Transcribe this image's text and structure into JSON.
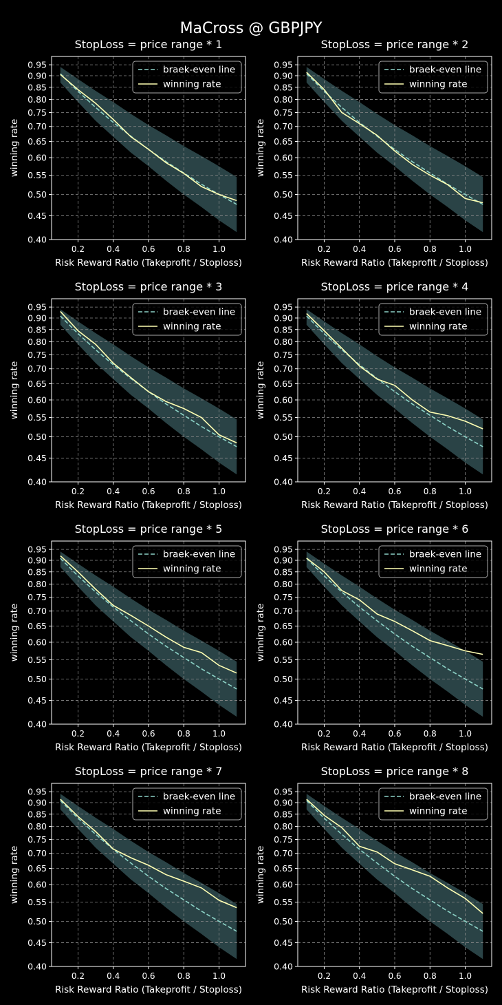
{
  "figure_title": "MaCross @ GBPJPY",
  "colors": {
    "background": "#000000",
    "axes": "#ffffff",
    "grid": "#8c8c8c",
    "band": "#2f4a4e",
    "breakeven": "#8dd3c7",
    "winning": "#ffffb3",
    "legend_bg": "#000000",
    "legend_edge": "#aaaaaa"
  },
  "chart_data": [
    {
      "type": "line",
      "title": "StopLoss = price range * 1",
      "xlabel": "Risk Reward Ratio (Takeprofit / Stoploss)",
      "ylabel": "winning rate",
      "xlim": [
        0.05,
        1.15
      ],
      "ylim": [
        0.4,
        0.99
      ],
      "yscale": "log",
      "xticks": [
        "0.2",
        "0.4",
        "0.6",
        "0.8",
        "1.0"
      ],
      "yticks": [
        "0.95",
        "0.90",
        "0.85",
        "0.80",
        "0.75",
        "0.70",
        "0.65",
        "0.60",
        "0.55",
        "0.50",
        "0.45",
        "0.40"
      ],
      "grid": true,
      "legend_position": "top-right",
      "x": [
        0.1,
        0.2,
        0.3,
        0.4,
        0.5,
        0.6,
        0.7,
        0.8,
        0.9,
        1.0,
        1.1
      ],
      "band": {
        "upper": [
          0.94,
          0.885,
          0.835,
          0.79,
          0.745,
          0.705,
          0.67,
          0.635,
          0.605,
          0.575,
          0.545
        ],
        "lower": [
          0.87,
          0.79,
          0.72,
          0.665,
          0.615,
          0.575,
          0.535,
          0.5,
          0.47,
          0.44,
          0.415
        ]
      },
      "series": [
        {
          "name": "braek-even line",
          "style": "dashed",
          "values": [
            0.909,
            0.833,
            0.769,
            0.714,
            0.667,
            0.625,
            0.588,
            0.556,
            0.526,
            0.5,
            0.476
          ]
        },
        {
          "name": "winning rate",
          "style": "solid",
          "values": [
            0.905,
            0.84,
            0.785,
            0.725,
            0.665,
            0.625,
            0.585,
            0.555,
            0.52,
            0.5,
            0.485
          ]
        }
      ]
    },
    {
      "type": "line",
      "title": "StopLoss = price range * 2",
      "xlabel": "Risk Reward Ratio (Takeprofit / Stoploss)",
      "ylabel": "winning rate",
      "xlim": [
        0.05,
        1.15
      ],
      "ylim": [
        0.4,
        0.99
      ],
      "yscale": "log",
      "xticks": [
        "0.2",
        "0.4",
        "0.6",
        "0.8",
        "1.0"
      ],
      "yticks": [
        "0.95",
        "0.90",
        "0.85",
        "0.80",
        "0.75",
        "0.70",
        "0.65",
        "0.60",
        "0.55",
        "0.50",
        "0.45",
        "0.40"
      ],
      "grid": true,
      "legend_position": "top-right",
      "x": [
        0.1,
        0.2,
        0.3,
        0.4,
        0.5,
        0.6,
        0.7,
        0.8,
        0.9,
        1.0,
        1.1
      ],
      "band": {
        "upper": [
          0.94,
          0.885,
          0.835,
          0.79,
          0.745,
          0.705,
          0.67,
          0.635,
          0.605,
          0.575,
          0.545
        ],
        "lower": [
          0.87,
          0.79,
          0.72,
          0.665,
          0.615,
          0.575,
          0.535,
          0.5,
          0.47,
          0.44,
          0.415
        ]
      },
      "series": [
        {
          "name": "braek-even line",
          "style": "dashed",
          "values": [
            0.909,
            0.833,
            0.769,
            0.714,
            0.667,
            0.625,
            0.588,
            0.556,
            0.526,
            0.5,
            0.476
          ]
        },
        {
          "name": "winning rate",
          "style": "solid",
          "values": [
            0.915,
            0.84,
            0.75,
            0.71,
            0.67,
            0.62,
            0.58,
            0.55,
            0.525,
            0.49,
            0.48
          ]
        }
      ]
    },
    {
      "type": "line",
      "title": "StopLoss = price range * 3",
      "xlabel": "Risk Reward Ratio (Takeprofit / Stoploss)",
      "ylabel": "winning rate",
      "xlim": [
        0.05,
        1.15
      ],
      "ylim": [
        0.4,
        0.99
      ],
      "yscale": "log",
      "xticks": [
        "0.2",
        "0.4",
        "0.6",
        "0.8",
        "1.0"
      ],
      "yticks": [
        "0.95",
        "0.90",
        "0.85",
        "0.80",
        "0.75",
        "0.70",
        "0.65",
        "0.60",
        "0.55",
        "0.50",
        "0.45",
        "0.40"
      ],
      "grid": true,
      "legend_position": "top-right",
      "x": [
        0.1,
        0.2,
        0.3,
        0.4,
        0.5,
        0.6,
        0.7,
        0.8,
        0.9,
        1.0,
        1.1
      ],
      "band": {
        "upper": [
          0.94,
          0.885,
          0.835,
          0.79,
          0.745,
          0.705,
          0.67,
          0.635,
          0.605,
          0.575,
          0.545
        ],
        "lower": [
          0.87,
          0.79,
          0.72,
          0.665,
          0.615,
          0.575,
          0.535,
          0.5,
          0.47,
          0.44,
          0.415
        ]
      },
      "series": [
        {
          "name": "braek-even line",
          "style": "dashed",
          "values": [
            0.909,
            0.833,
            0.769,
            0.714,
            0.667,
            0.625,
            0.588,
            0.556,
            0.526,
            0.5,
            0.476
          ]
        },
        {
          "name": "winning rate",
          "style": "solid",
          "values": [
            0.93,
            0.845,
            0.79,
            0.72,
            0.67,
            0.625,
            0.595,
            0.575,
            0.55,
            0.505,
            0.485
          ]
        }
      ]
    },
    {
      "type": "line",
      "title": "StopLoss = price range * 4",
      "xlabel": "Risk Reward Ratio (Takeprofit / Stoploss)",
      "ylabel": "winning rate",
      "xlim": [
        0.05,
        1.15
      ],
      "ylim": [
        0.4,
        0.99
      ],
      "yscale": "log",
      "xticks": [
        "0.2",
        "0.4",
        "0.6",
        "0.8",
        "1.0"
      ],
      "yticks": [
        "0.95",
        "0.90",
        "0.85",
        "0.80",
        "0.75",
        "0.70",
        "0.65",
        "0.60",
        "0.55",
        "0.50",
        "0.45",
        "0.40"
      ],
      "grid": true,
      "legend_position": "top-right",
      "x": [
        0.1,
        0.2,
        0.3,
        0.4,
        0.5,
        0.6,
        0.7,
        0.8,
        0.9,
        1.0,
        1.1
      ],
      "band": {
        "upper": [
          0.94,
          0.885,
          0.835,
          0.79,
          0.745,
          0.705,
          0.67,
          0.635,
          0.605,
          0.575,
          0.545
        ],
        "lower": [
          0.87,
          0.79,
          0.72,
          0.665,
          0.615,
          0.575,
          0.535,
          0.5,
          0.47,
          0.44,
          0.415
        ]
      },
      "series": [
        {
          "name": "braek-even line",
          "style": "dashed",
          "values": [
            0.909,
            0.833,
            0.769,
            0.714,
            0.667,
            0.625,
            0.588,
            0.556,
            0.526,
            0.5,
            0.476
          ]
        },
        {
          "name": "winning rate",
          "style": "solid",
          "values": [
            0.92,
            0.845,
            0.775,
            0.71,
            0.665,
            0.645,
            0.6,
            0.565,
            0.555,
            0.54,
            0.52
          ]
        }
      ]
    },
    {
      "type": "line",
      "title": "StopLoss = price range * 5",
      "xlabel": "Risk Reward Ratio (Takeprofit / Stoploss)",
      "ylabel": "winning rate",
      "xlim": [
        0.05,
        1.15
      ],
      "ylim": [
        0.4,
        0.99
      ],
      "yscale": "log",
      "xticks": [
        "0.2",
        "0.4",
        "0.6",
        "0.8",
        "1.0"
      ],
      "yticks": [
        "0.95",
        "0.90",
        "0.85",
        "0.80",
        "0.75",
        "0.70",
        "0.65",
        "0.60",
        "0.55",
        "0.50",
        "0.45",
        "0.40"
      ],
      "grid": true,
      "legend_position": "top-right",
      "x": [
        0.1,
        0.2,
        0.3,
        0.4,
        0.5,
        0.6,
        0.7,
        0.8,
        0.9,
        1.0,
        1.1
      ],
      "band": {
        "upper": [
          0.94,
          0.885,
          0.835,
          0.79,
          0.745,
          0.705,
          0.67,
          0.635,
          0.605,
          0.575,
          0.545
        ],
        "lower": [
          0.87,
          0.79,
          0.72,
          0.665,
          0.615,
          0.575,
          0.535,
          0.5,
          0.47,
          0.44,
          0.415
        ]
      },
      "series": [
        {
          "name": "braek-even line",
          "style": "dashed",
          "values": [
            0.909,
            0.833,
            0.769,
            0.714,
            0.667,
            0.625,
            0.588,
            0.556,
            0.526,
            0.5,
            0.476
          ]
        },
        {
          "name": "winning rate",
          "style": "solid",
          "values": [
            0.92,
            0.85,
            0.78,
            0.72,
            0.685,
            0.65,
            0.615,
            0.585,
            0.57,
            0.535,
            0.515
          ]
        }
      ]
    },
    {
      "type": "line",
      "title": "StopLoss = price range * 6",
      "xlabel": "Risk Reward Ratio (Takeprofit / Stoploss)",
      "ylabel": "winning rate",
      "xlim": [
        0.05,
        1.15
      ],
      "ylim": [
        0.4,
        0.99
      ],
      "yscale": "log",
      "xticks": [
        "0.2",
        "0.4",
        "0.6",
        "0.8",
        "1.0"
      ],
      "yticks": [
        "0.95",
        "0.90",
        "0.85",
        "0.80",
        "0.75",
        "0.70",
        "0.65",
        "0.60",
        "0.55",
        "0.50",
        "0.45",
        "0.40"
      ],
      "grid": true,
      "legend_position": "top-right",
      "x": [
        0.1,
        0.2,
        0.3,
        0.4,
        0.5,
        0.6,
        0.7,
        0.8,
        0.9,
        1.0,
        1.1
      ],
      "band": {
        "upper": [
          0.94,
          0.885,
          0.835,
          0.79,
          0.745,
          0.705,
          0.67,
          0.635,
          0.605,
          0.575,
          0.545
        ],
        "lower": [
          0.87,
          0.79,
          0.72,
          0.665,
          0.615,
          0.575,
          0.535,
          0.5,
          0.47,
          0.44,
          0.415
        ]
      },
      "series": [
        {
          "name": "braek-even line",
          "style": "dashed",
          "values": [
            0.909,
            0.833,
            0.769,
            0.714,
            0.667,
            0.625,
            0.588,
            0.556,
            0.526,
            0.5,
            0.476
          ]
        },
        {
          "name": "winning rate",
          "style": "solid",
          "values": [
            0.91,
            0.85,
            0.775,
            0.74,
            0.69,
            0.665,
            0.635,
            0.605,
            0.59,
            0.575,
            0.565
          ]
        }
      ]
    },
    {
      "type": "line",
      "title": "StopLoss = price range * 7",
      "xlabel": "Risk Reward Ratio (Takeprofit / Stoploss)",
      "ylabel": "winning rate",
      "xlim": [
        0.05,
        1.15
      ],
      "ylim": [
        0.4,
        0.99
      ],
      "yscale": "log",
      "xticks": [
        "0.2",
        "0.4",
        "0.6",
        "0.8",
        "1.0"
      ],
      "yticks": [
        "0.95",
        "0.90",
        "0.85",
        "0.80",
        "0.75",
        "0.70",
        "0.65",
        "0.60",
        "0.55",
        "0.50",
        "0.45",
        "0.40"
      ],
      "grid": true,
      "legend_position": "top-right",
      "x": [
        0.1,
        0.2,
        0.3,
        0.4,
        0.5,
        0.6,
        0.7,
        0.8,
        0.9,
        1.0,
        1.1
      ],
      "band": {
        "upper": [
          0.94,
          0.885,
          0.835,
          0.79,
          0.745,
          0.705,
          0.67,
          0.635,
          0.605,
          0.575,
          0.545
        ],
        "lower": [
          0.87,
          0.79,
          0.72,
          0.665,
          0.615,
          0.575,
          0.535,
          0.5,
          0.47,
          0.44,
          0.415
        ]
      },
      "series": [
        {
          "name": "braek-even line",
          "style": "dashed",
          "values": [
            0.909,
            0.833,
            0.769,
            0.714,
            0.667,
            0.625,
            0.588,
            0.556,
            0.526,
            0.5,
            0.476
          ]
        },
        {
          "name": "winning rate",
          "style": "solid",
          "values": [
            0.915,
            0.84,
            0.78,
            0.715,
            0.685,
            0.66,
            0.63,
            0.61,
            0.59,
            0.555,
            0.535
          ]
        }
      ]
    },
    {
      "type": "line",
      "title": "StopLoss = price range * 8",
      "xlabel": "Risk Reward Ratio (Takeprofit / Stoploss)",
      "ylabel": "winning rate",
      "xlim": [
        0.05,
        1.15
      ],
      "ylim": [
        0.4,
        0.99
      ],
      "yscale": "log",
      "xticks": [
        "0.2",
        "0.4",
        "0.6",
        "0.8",
        "1.0"
      ],
      "yticks": [
        "0.95",
        "0.90",
        "0.85",
        "0.80",
        "0.75",
        "0.70",
        "0.65",
        "0.60",
        "0.55",
        "0.50",
        "0.45",
        "0.40"
      ],
      "grid": true,
      "legend_position": "top-right",
      "x": [
        0.1,
        0.2,
        0.3,
        0.4,
        0.5,
        0.6,
        0.7,
        0.8,
        0.9,
        1.0,
        1.1
      ],
      "band": {
        "upper": [
          0.94,
          0.885,
          0.835,
          0.79,
          0.745,
          0.705,
          0.67,
          0.635,
          0.605,
          0.575,
          0.545
        ],
        "lower": [
          0.87,
          0.79,
          0.72,
          0.665,
          0.615,
          0.575,
          0.535,
          0.5,
          0.47,
          0.44,
          0.415
        ]
      },
      "series": [
        {
          "name": "braek-even line",
          "style": "dashed",
          "values": [
            0.909,
            0.833,
            0.769,
            0.714,
            0.667,
            0.625,
            0.588,
            0.556,
            0.526,
            0.5,
            0.476
          ]
        },
        {
          "name": "winning rate",
          "style": "solid",
          "values": [
            0.915,
            0.845,
            0.795,
            0.725,
            0.705,
            0.665,
            0.645,
            0.625,
            0.59,
            0.56,
            0.52
          ]
        }
      ]
    }
  ]
}
